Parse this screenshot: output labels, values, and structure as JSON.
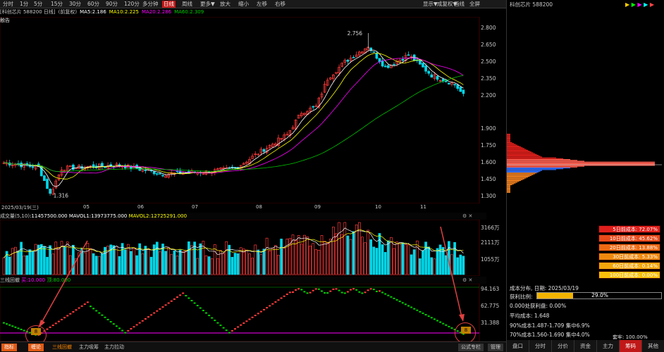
{
  "toolbar": {
    "periods": [
      "分时",
      "1分",
      "5分",
      "15分",
      "30分",
      "60分",
      "90分",
      "120分",
      "多分钟",
      "日线",
      "周线",
      "更多▼",
      "放大",
      "缩小",
      "左移",
      "右移"
    ],
    "active_period": "日线",
    "right_buttons": [
      "显示▼",
      "成复权▼",
      "画线",
      "全屏"
    ]
  },
  "infobar": {
    "security": "[科创芯片 588200 日线]",
    "adjust": "(前复权)",
    "ma5": "MA5:2.186",
    "ma10": "MA10:2.225",
    "ma20": "MA20:2.286",
    "ma60": "MA60:2.309"
  },
  "notice": "触告",
  "main_chart": {
    "high_label": "2.756",
    "low_label": "1.316",
    "y_ticks": [
      "2.800",
      "2.650",
      "2.500",
      "2.350",
      "2.200",
      "1.900",
      "1.750",
      "1.600",
      "1.450",
      "1.300"
    ],
    "dates": [
      "2025/03/19(三)",
      "05",
      "06",
      "07",
      "08",
      "09",
      "10",
      "11"
    ]
  },
  "volume_panel": {
    "title": "成交量(5,10)",
    "vol": ":11457500.000",
    "mavol1": "MAVOL1:13973775.000",
    "mavol2": "MAVOL2:12725291.000",
    "y_ticks": [
      "3166万",
      "2111万",
      "1055万"
    ]
  },
  "indicator_panel": {
    "title": "三线回撤",
    "v1": "买:10.000",
    "v2": "顶:80.000",
    "y_ticks": [
      "94.163",
      "62.775",
      "31.388"
    ],
    "marker_left": "8",
    "marker_right": "8"
  },
  "bottom_tabs": [
    "指标",
    "缠论",
    "三线回撤",
    "主力吸筹",
    "主力拉动"
  ],
  "bottom_right": [
    "公式专栏",
    "管理"
  ],
  "right_panel": {
    "title": "科创芯片 588200",
    "chip_rows": [
      {
        "label": "5日前成本: 72.07%",
        "color": "#e0201c"
      },
      {
        "label": "10日前成本: 45.62%",
        "color": "#e84a1a"
      },
      {
        "label": "20日前成本: 13.88%",
        "color": "#ee6a12"
      },
      {
        "label": "30日前成本: 5.33%",
        "color": "#f08a0e"
      },
      {
        "label": "60日前成本: 0.14%",
        "color": "#f4a60c"
      },
      {
        "label": "100日前成本: 0.00%",
        "color": "#f8c00a"
      }
    ],
    "dist_date": "成本分布, 日期: 2025/03/19",
    "profit_label": "获利比例:",
    "profit_value": "29.0%",
    "profit_ratio": 0.29,
    "profit_at": "0.000处获利盘: 0.00%",
    "avg_cost": "平均成本: 1.648",
    "c90": "90%成本1.487-1.709 集中6.9%",
    "c70": "70%成本1.560-1.690 集中4.0%",
    "seg_label": "套牢: 100.00%",
    "tabs": [
      "盘口",
      "分时",
      "分价",
      "资金",
      "主力",
      "筹码",
      "其他"
    ],
    "active_tab": "筹码"
  },
  "colors": {
    "up": "#ff3b3b",
    "down": "#00d7e8",
    "ma5": "#ffffff",
    "ma10": "#ffff00",
    "ma20": "#ff00ff",
    "ma60": "#00c000",
    "bg": "#000000"
  }
}
